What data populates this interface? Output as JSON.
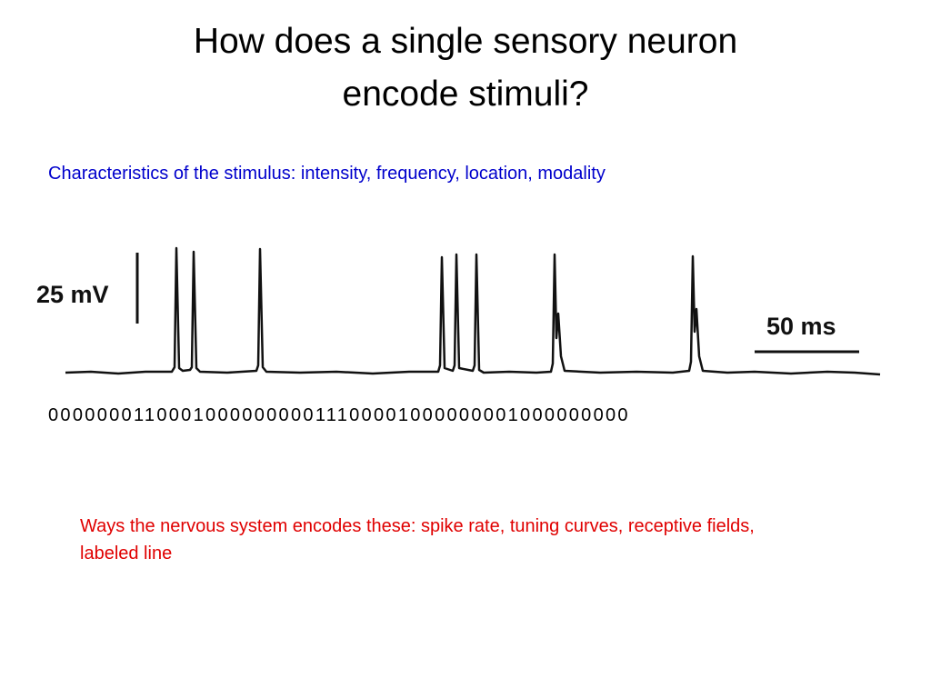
{
  "title": [
    "How does a single sensory neuron",
    "encode stimuli?"
  ],
  "subtitle": "Characteristics of the stimulus: intensity, frequency, location, modality",
  "trace": {
    "amplitude_scale": "25 mV",
    "time_scale": "50 ms"
  },
  "spike_code": "000000011000100000000011100001000000001000000000",
  "note": "Ways the nervous system encodes these: spike rate, tuning curves, receptive fields, labeled line"
}
